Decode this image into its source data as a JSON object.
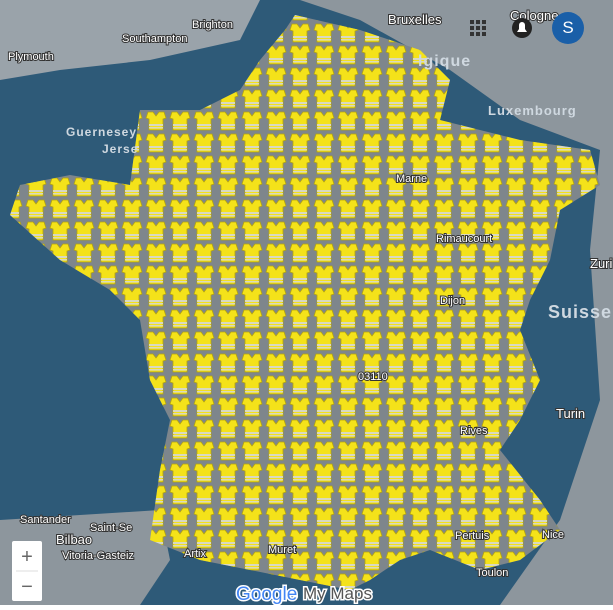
{
  "map": {
    "labels": [
      "Plymouth",
      "Brighton",
      "Southampton",
      "Bruxelles",
      "Cologne",
      "lgique",
      "Luxembourg",
      "Guernesey",
      "Jerse",
      "Marne",
      "Rimaucourt",
      "Zuri",
      "Dijon",
      "Suisse",
      "03110",
      "Turin",
      "Rives",
      "Santander",
      "Bilbao",
      "Saint-Se",
      "Vitoria-Gasteiz",
      "Artix",
      "Muret",
      "Pertuis",
      "Nice",
      "Toulon"
    ]
  },
  "controls": {
    "account": "S",
    "zoom_in": "+",
    "zoom_out": "−"
  },
  "footer": {
    "brand": "Google",
    "product": "My Maps"
  }
}
